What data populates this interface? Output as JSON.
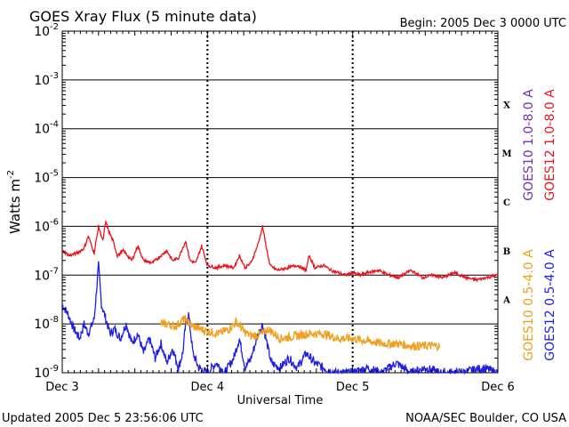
{
  "chart_data": {
    "type": "line",
    "title": "GOES Xray Flux (5 minute data)",
    "begin": "Begin:  2005 Dec 3 0000 UTC",
    "xlabel": "Universal Time",
    "ylabel_main": "Watts m",
    "ylabel_exp": "-2",
    "updated": "Updated 2005 Dec  5 23:56:06 UTC",
    "credit": "NOAA/SEC Boulder, CO USA",
    "y_scale": "log",
    "ylim_exp": [
      -9,
      -2
    ],
    "xlim_days": [
      0,
      3
    ],
    "grid": true,
    "x_ticks": [
      {
        "label": "Dec 3",
        "day": 0
      },
      {
        "label": "Dec 4",
        "day": 1
      },
      {
        "label": "Dec 5",
        "day": 2
      },
      {
        "label": "Dec 6",
        "day": 3
      }
    ],
    "y_ticks": [
      {
        "base": "10",
        "exp": "-2",
        "value_exp": -2
      },
      {
        "base": "10",
        "exp": "-3",
        "value_exp": -3
      },
      {
        "base": "10",
        "exp": "-4",
        "value_exp": -4
      },
      {
        "base": "10",
        "exp": "-5",
        "value_exp": -5
      },
      {
        "base": "10",
        "exp": "-6",
        "value_exp": -6
      },
      {
        "base": "10",
        "exp": "-7",
        "value_exp": -7
      },
      {
        "base": "10",
        "exp": "-8",
        "value_exp": -8
      },
      {
        "base": "10",
        "exp": "-9",
        "value_exp": -9
      }
    ],
    "flare_classes": [
      {
        "label": "X",
        "value_exp": -3.5
      },
      {
        "label": "M",
        "value_exp": -4.5
      },
      {
        "label": "C",
        "value_exp": -5.5
      },
      {
        "label": "B",
        "value_exp": -6.5
      },
      {
        "label": "A",
        "value_exp": -7.5
      }
    ],
    "legend_long": [
      {
        "name": "GOES10 1.0-8.0 A",
        "color": "#7a2db0"
      },
      {
        "name": "GOES12 1.0-8.0 A",
        "color": "#e8141c"
      }
    ],
    "legend_short": [
      {
        "name": "GOES10 0.5-4.0 A",
        "color": "#f0a01e"
      },
      {
        "name": "GOES12 0.5-4.0 A",
        "color": "#1f1fe6"
      }
    ],
    "series": [
      {
        "name": "GOES12 1.0-8.0 A",
        "color": "#e8141c",
        "points": [
          [
            0,
            -6.5
          ],
          [
            0.05,
            -6.6
          ],
          [
            0.1,
            -6.55
          ],
          [
            0.15,
            -6.45
          ],
          [
            0.18,
            -6.2
          ],
          [
            0.22,
            -6.55
          ],
          [
            0.25,
            -6.0
          ],
          [
            0.28,
            -6.3
          ],
          [
            0.3,
            -5.9
          ],
          [
            0.32,
            -6.1
          ],
          [
            0.35,
            -6.3
          ],
          [
            0.38,
            -6.6
          ],
          [
            0.42,
            -6.5
          ],
          [
            0.48,
            -6.7
          ],
          [
            0.52,
            -6.4
          ],
          [
            0.56,
            -6.7
          ],
          [
            0.62,
            -6.75
          ],
          [
            0.68,
            -6.6
          ],
          [
            0.72,
            -6.5
          ],
          [
            0.76,
            -6.7
          ],
          [
            0.8,
            -6.65
          ],
          [
            0.85,
            -6.3
          ],
          [
            0.88,
            -6.7
          ],
          [
            0.92,
            -6.75
          ],
          [
            0.96,
            -6.4
          ],
          [
            1.0,
            -6.8
          ],
          [
            1.06,
            -6.85
          ],
          [
            1.12,
            -6.8
          ],
          [
            1.18,
            -6.85
          ],
          [
            1.22,
            -6.6
          ],
          [
            1.26,
            -6.85
          ],
          [
            1.3,
            -6.75
          ],
          [
            1.35,
            -6.35
          ],
          [
            1.38,
            -6.0
          ],
          [
            1.4,
            -6.35
          ],
          [
            1.43,
            -6.8
          ],
          [
            1.48,
            -6.9
          ],
          [
            1.55,
            -6.85
          ],
          [
            1.62,
            -6.8
          ],
          [
            1.68,
            -6.9
          ],
          [
            1.7,
            -6.6
          ],
          [
            1.74,
            -6.85
          ],
          [
            1.8,
            -6.8
          ],
          [
            1.85,
            -6.9
          ],
          [
            1.9,
            -6.95
          ],
          [
            1.95,
            -7.0
          ],
          [
            2.0,
            -6.95
          ],
          [
            2.05,
            -7.0
          ],
          [
            2.1,
            -6.95
          ],
          [
            2.18,
            -6.9
          ],
          [
            2.25,
            -7.0
          ],
          [
            2.32,
            -7.05
          ],
          [
            2.4,
            -6.9
          ],
          [
            2.48,
            -7.05
          ],
          [
            2.55,
            -7.0
          ],
          [
            2.62,
            -7.05
          ],
          [
            2.7,
            -6.95
          ],
          [
            2.78,
            -7.05
          ],
          [
            2.85,
            -7.1
          ],
          [
            2.92,
            -7.05
          ],
          [
            3.0,
            -7.0
          ]
        ]
      },
      {
        "name": "GOES12 0.5-4.0 A",
        "color": "#1f1fe6",
        "points": [
          [
            0,
            -7.6
          ],
          [
            0.04,
            -7.8
          ],
          [
            0.08,
            -8.1
          ],
          [
            0.12,
            -8.3
          ],
          [
            0.15,
            -8.0
          ],
          [
            0.18,
            -8.2
          ],
          [
            0.22,
            -7.9
          ],
          [
            0.25,
            -6.8
          ],
          [
            0.27,
            -7.6
          ],
          [
            0.3,
            -7.9
          ],
          [
            0.33,
            -8.2
          ],
          [
            0.36,
            -8.1
          ],
          [
            0.4,
            -8.3
          ],
          [
            0.44,
            -8.0
          ],
          [
            0.48,
            -8.4
          ],
          [
            0.52,
            -8.2
          ],
          [
            0.56,
            -8.6
          ],
          [
            0.6,
            -8.3
          ],
          [
            0.64,
            -8.7
          ],
          [
            0.68,
            -8.4
          ],
          [
            0.72,
            -8.8
          ],
          [
            0.76,
            -8.5
          ],
          [
            0.8,
            -8.9
          ],
          [
            0.83,
            -8.6
          ],
          [
            0.85,
            -8.0
          ],
          [
            0.87,
            -7.8
          ],
          [
            0.9,
            -8.6
          ],
          [
            0.94,
            -8.9
          ],
          [
            1.0,
            -9.0
          ],
          [
            1.06,
            -8.8
          ],
          [
            1.12,
            -9.0
          ],
          [
            1.18,
            -8.7
          ],
          [
            1.22,
            -8.3
          ],
          [
            1.26,
            -8.9
          ],
          [
            1.3,
            -8.7
          ],
          [
            1.35,
            -8.2
          ],
          [
            1.38,
            -8.0
          ],
          [
            1.41,
            -8.4
          ],
          [
            1.44,
            -8.8
          ],
          [
            1.5,
            -8.9
          ],
          [
            1.56,
            -8.7
          ],
          [
            1.62,
            -8.9
          ],
          [
            1.68,
            -8.6
          ],
          [
            1.74,
            -8.8
          ],
          [
            1.8,
            -8.9
          ],
          [
            1.88,
            -9.0
          ],
          [
            2.0,
            -9.0
          ],
          [
            2.1,
            -8.9
          ],
          [
            2.2,
            -9.0
          ],
          [
            2.3,
            -8.8
          ],
          [
            2.4,
            -9.0
          ],
          [
            2.5,
            -8.9
          ],
          [
            2.6,
            -9.0
          ],
          [
            2.75,
            -9.0
          ],
          [
            2.9,
            -8.9
          ],
          [
            3.0,
            -9.0
          ]
        ]
      },
      {
        "name": "GOES10 0.5-4.0 A",
        "color": "#f0a01e",
        "points": [
          [
            0.68,
            -8.0
          ],
          [
            0.72,
            -8.0
          ],
          [
            0.78,
            -8.05
          ],
          [
            0.84,
            -7.9
          ],
          [
            0.9,
            -8.05
          ],
          [
            0.95,
            -8.1
          ],
          [
            1.0,
            -8.15
          ],
          [
            1.08,
            -8.2
          ],
          [
            1.15,
            -8.1
          ],
          [
            1.2,
            -7.95
          ],
          [
            1.25,
            -8.15
          ],
          [
            1.3,
            -8.25
          ],
          [
            1.38,
            -8.2
          ],
          [
            1.42,
            -8.1
          ],
          [
            1.5,
            -8.3
          ],
          [
            1.6,
            -8.25
          ],
          [
            1.7,
            -8.2
          ],
          [
            1.8,
            -8.2
          ],
          [
            1.85,
            -8.25
          ],
          [
            1.9,
            -8.3
          ],
          [
            2.0,
            -8.3
          ],
          [
            2.1,
            -8.35
          ],
          [
            2.2,
            -8.4
          ],
          [
            2.3,
            -8.4
          ],
          [
            2.4,
            -8.45
          ],
          [
            2.5,
            -8.45
          ],
          [
            2.6,
            -8.45
          ]
        ]
      }
    ]
  }
}
